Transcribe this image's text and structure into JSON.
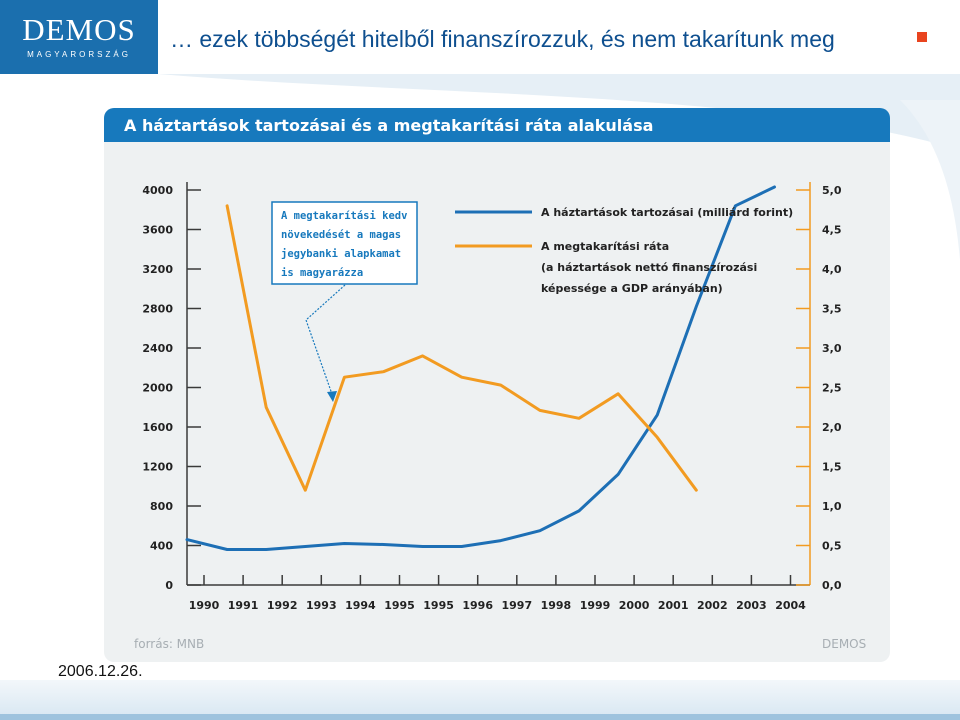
{
  "slide": {
    "title": "… ezek többségét hitelből finanszírozzuk, és nem takarítunk meg",
    "date": "2006.12.26.",
    "logo_name": "DEMOS",
    "logo_sub": "MAGYARORSZÁG",
    "accent_color": "#e9441f",
    "brand_blue": "#1779bd"
  },
  "chart_card": {
    "title": "A háztartások tartozásai és a megtakarítási ráta alakulása",
    "source": "forrás: MNB",
    "brand": "DEMOS",
    "annotation": [
      "A megtakarítási kedv",
      "növekedését a magas",
      "jegybanki alapkamat",
      "is magyarázza"
    ]
  },
  "chart_data": {
    "type": "line",
    "title": "A háztartások tartozásai és a megtakarítási ráta alakulása",
    "x_labels": [
      "1990",
      "1991",
      "1992",
      "1993",
      "1994",
      "1995",
      "1995",
      "1996",
      "1997",
      "1998",
      "1999",
      "2000",
      "2001",
      "2002",
      "2003",
      "2004"
    ],
    "y_left": {
      "ticks": [
        "0",
        "400",
        "800",
        "1200",
        "1600",
        "2000",
        "2400",
        "2800",
        "3200",
        "3600",
        "4000"
      ],
      "ylim": [
        0,
        4000
      ]
    },
    "y_right": {
      "ticks": [
        "0,0",
        "0,5",
        "1,0",
        "1,5",
        "2,0",
        "2,5",
        "3,0",
        "3,5",
        "4,0",
        "4,5",
        "5,0"
      ],
      "ylim": [
        0,
        5
      ]
    },
    "series": [
      {
        "name": "A háztartások tartozásai (milliárd forint)",
        "axis": "left",
        "color": "#1d6fb5",
        "values": [
          460,
          360,
          360,
          390,
          420,
          410,
          390,
          390,
          450,
          550,
          750,
          1120,
          1720,
          2820,
          3840,
          4030
        ]
      },
      {
        "name_lines": [
          "A megtakarítási ráta",
          "(a háztartások nettó finanszírozási",
          "képessége a GDP arányában)"
        ],
        "axis": "right",
        "color": "#f29b21",
        "values": [
          null,
          4.8,
          2.25,
          1.2,
          2.63,
          2.7,
          2.9,
          2.63,
          2.53,
          2.21,
          2.11,
          2.42,
          1.87,
          1.2,
          null,
          null
        ]
      }
    ],
    "grid": false,
    "legend_position": "top-right"
  }
}
